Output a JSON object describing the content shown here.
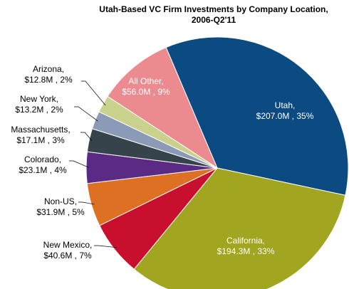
{
  "chart_data": {
    "type": "pie",
    "title": "Utah-Based VC Firm Investments by Company Location, 2006-Q2'11",
    "categories": [
      "Utah,",
      "California,",
      "New Mexico,",
      "Non-US,",
      "Colorado,",
      "Massachusetts,",
      "New York,",
      "Arizona,",
      "All Other,"
    ],
    "values": [
      207.0,
      194.3,
      40.6,
      31.9,
      23.1,
      17.1,
      13.2,
      12.8,
      56.0
    ],
    "value_labels": [
      "$207.0M , 35%",
      "$194.3M , 33%",
      "$40.6M , 7%",
      "$31.9M , 5%",
      "$23.1M , 4%",
      "$17.1M , 3%",
      "$13.2M , 2%",
      "$12.8M , 2%",
      "$56.0M , 9%"
    ],
    "colors": [
      "#0c4a82",
      "#a1a51f",
      "#c8102e",
      "#de7024",
      "#5b2a84",
      "#37434b",
      "#8b9ab6",
      "#cad18c",
      "#eb8a8f"
    ]
  }
}
